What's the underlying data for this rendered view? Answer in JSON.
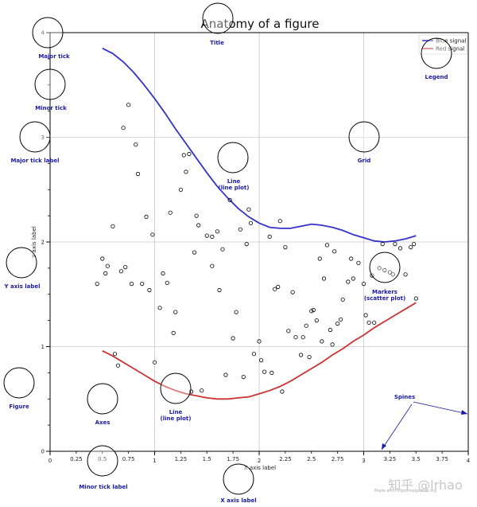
{
  "chart_data": {
    "type": "line",
    "title": "Anatomy of a figure",
    "xlabel": "X axis label",
    "ylabel": "Y axis label",
    "xlim": [
      0,
      4
    ],
    "ylim": [
      0,
      4
    ],
    "major_xticks": [
      0,
      1,
      2,
      3,
      4
    ],
    "minor_xticks": [
      0.25,
      0.5,
      0.75,
      1.25,
      1.5,
      1.75,
      2.25,
      2.5,
      2.75,
      3.25,
      3.5,
      3.75
    ],
    "major_yticks": [
      0,
      1,
      2,
      3,
      4
    ],
    "grid": true,
    "legend_position": "top-right",
    "series": [
      {
        "name": "Blue signal",
        "kind": "line",
        "color": "#3333cc",
        "x": [
          0.5,
          0.6,
          0.7,
          0.8,
          0.9,
          1.0,
          1.1,
          1.2,
          1.3,
          1.4,
          1.5,
          1.6,
          1.7,
          1.8,
          1.9,
          2.0,
          2.1,
          2.2,
          2.3,
          2.4,
          2.5,
          2.6,
          2.7,
          2.8,
          2.9,
          3.0,
          3.1,
          3.2,
          3.3,
          3.4,
          3.5
        ],
        "y": [
          3.85,
          3.8,
          3.72,
          3.62,
          3.5,
          3.37,
          3.23,
          3.08,
          2.94,
          2.8,
          2.66,
          2.53,
          2.42,
          2.32,
          2.24,
          2.18,
          2.14,
          2.13,
          2.13,
          2.15,
          2.17,
          2.16,
          2.14,
          2.11,
          2.07,
          2.04,
          2.01,
          2.0,
          2.01,
          2.03,
          2.06
        ]
      },
      {
        "name": "Red signal",
        "kind": "line",
        "color": "#cc3333",
        "x": [
          0.5,
          0.6,
          0.7,
          0.8,
          0.9,
          1.0,
          1.1,
          1.2,
          1.3,
          1.4,
          1.5,
          1.6,
          1.7,
          1.8,
          1.9,
          2.0,
          2.1,
          2.2,
          2.3,
          2.4,
          2.5,
          2.6,
          2.7,
          2.8,
          2.9,
          3.0,
          3.1,
          3.2,
          3.3,
          3.4,
          3.5
        ],
        "y": [
          0.96,
          0.91,
          0.85,
          0.79,
          0.73,
          0.67,
          0.62,
          0.58,
          0.55,
          0.53,
          0.51,
          0.5,
          0.5,
          0.51,
          0.52,
          0.55,
          0.58,
          0.62,
          0.67,
          0.73,
          0.79,
          0.85,
          0.92,
          0.98,
          1.05,
          1.11,
          1.18,
          1.24,
          1.3,
          1.36,
          1.42
        ]
      },
      {
        "name": "",
        "kind": "scatter",
        "color": "#000000",
        "x": [
          0.5,
          0.53,
          0.55,
          0.6,
          0.62,
          0.68,
          0.7,
          0.75,
          0.78,
          0.82,
          0.84,
          0.88,
          0.92,
          0.95,
          0.98,
          1.0,
          1.05,
          1.08,
          1.12,
          1.15,
          1.18,
          1.2,
          1.25,
          1.28,
          1.3,
          1.33,
          1.38,
          1.4,
          1.42,
          1.45,
          1.5,
          1.55,
          1.6,
          1.62,
          1.65,
          1.68,
          1.72,
          1.75,
          1.78,
          1.82,
          1.85,
          1.88,
          1.9,
          1.95,
          2.0,
          2.02,
          2.05,
          2.1,
          2.12,
          2.15,
          2.18,
          2.2,
          2.25,
          2.28,
          2.32,
          2.35,
          2.4,
          2.42,
          2.45,
          2.48,
          2.5,
          2.52,
          2.55,
          2.58,
          2.6,
          2.65,
          2.68,
          2.7,
          2.72,
          2.75,
          2.78,
          2.8,
          2.85,
          2.88,
          2.9,
          2.95,
          3.0,
          3.02,
          3.05,
          3.08,
          3.1,
          3.15,
          3.2,
          3.25,
          3.28,
          3.3,
          3.35,
          3.4,
          3.45,
          3.48,
          3.5,
          0.45,
          0.65,
          0.72,
          1.35,
          1.55,
          1.92,
          2.22,
          2.62,
          3.18
        ],
        "y": [
          1.84,
          1.7,
          1.77,
          2.15,
          0.93,
          1.72,
          3.09,
          3.31,
          1.6,
          2.93,
          2.65,
          1.6,
          2.24,
          1.54,
          2.07,
          0.85,
          1.37,
          1.7,
          1.61,
          2.28,
          1.13,
          1.33,
          2.5,
          2.83,
          2.67,
          2.84,
          1.9,
          2.25,
          2.16,
          0.58,
          2.06,
          1.77,
          2.1,
          1.54,
          1.93,
          0.73,
          2.4,
          1.08,
          1.33,
          2.12,
          0.71,
          1.98,
          2.31,
          0.93,
          1.05,
          0.87,
          0.76,
          2.05,
          0.75,
          1.55,
          1.57,
          2.2,
          1.95,
          1.15,
          1.52,
          1.09,
          0.92,
          1.09,
          1.2,
          0.9,
          1.34,
          1.35,
          1.25,
          1.84,
          1.05,
          1.97,
          1.16,
          1.02,
          1.91,
          1.22,
          1.26,
          1.45,
          1.62,
          1.84,
          1.65,
          1.8,
          1.6,
          1.3,
          1.23,
          1.68,
          1.23,
          1.75,
          1.73,
          1.71,
          1.69,
          1.98,
          1.94,
          1.69,
          1.95,
          1.98,
          1.46,
          1.6,
          0.82,
          1.76,
          0.57,
          2.05,
          2.18,
          0.57,
          1.65,
          1.98
        ]
      }
    ],
    "annotations": [
      {
        "label": "Major tick"
      },
      {
        "label": "Minor tick"
      },
      {
        "label": "Major tick label"
      },
      {
        "label": "Y axis label"
      },
      {
        "label": "Figure"
      },
      {
        "label": "Axes"
      },
      {
        "label": "Minor tick label"
      },
      {
        "label": "Title"
      },
      {
        "label": "Line\n(line plot)"
      },
      {
        "label": "Grid"
      },
      {
        "label": "Legend"
      },
      {
        "label": "Markers\n(scatter plot)"
      },
      {
        "label": "Line\n(line plot)"
      },
      {
        "label": "X axis label"
      },
      {
        "label": "Spines"
      }
    ]
  },
  "watermark": {
    "text": "知乎 @lrhao",
    "small": "Made with http://matplotlib.org"
  },
  "colors": {
    "annotation_text": "#1a1aa6",
    "annotation_circle": "#000000",
    "grid": "#c8c8c8"
  }
}
